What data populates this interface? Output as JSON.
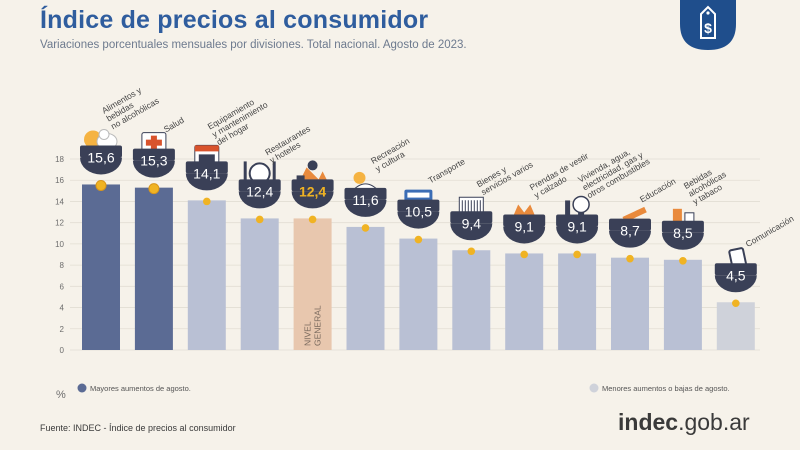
{
  "header": {
    "title": "Índice de precios al consumidor",
    "subtitle": "Variaciones porcentuales mensuales por divisiones. Total nacional. Agosto de 2023."
  },
  "footer": {
    "source": "Fuente: INDEC - Índice de precios al consumidor",
    "brand_bold": "indec",
    "brand_rest": ".gob.ar"
  },
  "icons": {
    "badge": "price-tag-dollar-icon"
  },
  "chart_data": {
    "type": "bar",
    "y_unit_label": "%",
    "ylim": [
      0,
      18
    ],
    "yticks": [
      0,
      2,
      4,
      6,
      8,
      10,
      12,
      14,
      16,
      18
    ],
    "grid": true,
    "categories": [
      "Alimentos y bebidas no alcohólicas",
      "Salud",
      "Equipamiento y mantenimiento del hogar",
      "Restaurantes y hoteles",
      "Nivel general",
      "Recreación y cultura",
      "Transporte",
      "Bienes y servicios varios",
      "Prendas de vestir y calzado",
      "Vivienda, agua, electricidad, gas y otros combustibles",
      "Educación",
      "Bebidas alcohólicas y tabaco",
      "Comunicación"
    ],
    "category_label_lines": [
      [
        "Alimentos y",
        "bebidas",
        "no alcohólicas"
      ],
      [
        "Salud"
      ],
      [
        "Equipamiento",
        "y mantenimiento",
        "del hogar"
      ],
      [
        "Restaurantes",
        "y hoteles"
      ],
      [],
      [
        "Recreación",
        "y cultura"
      ],
      [
        "Transporte"
      ],
      [
        "Bienes y",
        "servicios varios"
      ],
      [
        "Prendas de vestir",
        "y calzado"
      ],
      [
        "Vivienda, agua,",
        "electricidad, gas y",
        "otros combustibles"
      ],
      [
        "Educación"
      ],
      [
        "Bebidas",
        "alcohólicas",
        "y tabaco"
      ],
      [
        "Comunicación"
      ]
    ],
    "in_bar_label": [
      "NIVEL",
      "GENERAL"
    ],
    "values": [
      15.6,
      15.3,
      14.1,
      12.4,
      12.4,
      11.6,
      10.5,
      9.4,
      9.1,
      9.1,
      8.7,
      8.5,
      4.5
    ],
    "value_labels": [
      "15,6",
      "15,3",
      "14,1",
      "12,4",
      "12,4",
      "11,6",
      "10,5",
      "9,4",
      "9,1",
      "9,1",
      "8,7",
      "8,5",
      "4,5"
    ],
    "groups": [
      "mayores",
      "mayores",
      "other",
      "other",
      "nivel",
      "other",
      "other",
      "other",
      "other",
      "other",
      "other",
      "other",
      "menores"
    ],
    "icon_names": [
      "food-icon",
      "health-cross-icon",
      "household-appliance-icon",
      "restaurant-cutlery-icon",
      "general-level-icon",
      "recreation-icon",
      "bus-icon",
      "comb-icon",
      "clothing-icon",
      "lightbulb-icon",
      "pencil-icon",
      "drinks-icon",
      "mobile-phone-icon"
    ],
    "colors": {
      "mayores": "#5b6b94",
      "other": "#b9c0d4",
      "nivel": "#e8c7ae",
      "menores": "#cfd2da",
      "marker": "#f0b323",
      "bubble": "#3a4057",
      "bubble_nivel_text": "#f0b323",
      "axis_text": "#6d6d6d"
    },
    "legend": [
      {
        "label": "Mayores aumentos de agosto.",
        "group": "mayores"
      },
      {
        "label": "Menores aumentos o bajas de agosto.",
        "group": "menores"
      }
    ]
  }
}
